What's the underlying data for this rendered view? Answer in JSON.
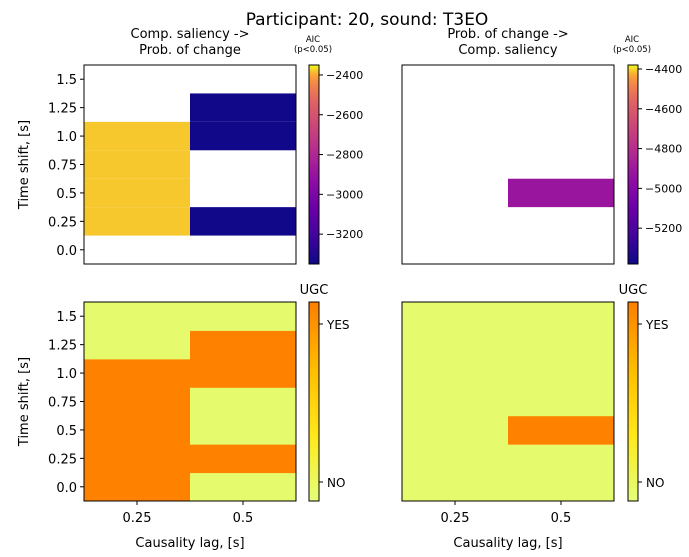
{
  "page": {
    "title": "Participant: 20, sound: T3EO"
  },
  "chart_data": [
    {
      "type": "heatmap",
      "id": "aic-forward",
      "title": "Comp. saliency ->\nProb. of change",
      "xlabel": "",
      "ylabel": "Time shift, [s]",
      "x_categories": [
        0.25,
        0.5
      ],
      "x_tick_labels": [],
      "y_values": [
        0.0,
        0.25,
        0.5,
        0.75,
        1.0,
        1.25,
        1.5
      ],
      "y_tick_labels": [
        "0.0",
        "0.25",
        "0.5",
        "0.75",
        "1.0",
        "1.25",
        "1.5"
      ],
      "colormap": "plasma",
      "cells": [
        {
          "x": 0.25,
          "y": 0.25,
          "value": -2380
        },
        {
          "x": 0.25,
          "y": 0.5,
          "value": -2380
        },
        {
          "x": 0.25,
          "y": 0.75,
          "value": -2380
        },
        {
          "x": 0.25,
          "y": 1.0,
          "value": -2380
        },
        {
          "x": 0.5,
          "y": 0.25,
          "value": -3340
        },
        {
          "x": 0.5,
          "y": 1.0,
          "value": -3340
        },
        {
          "x": 0.5,
          "y": 1.25,
          "value": -3340
        }
      ],
      "missing_color": "#ffffff",
      "colorbar": {
        "label": "AIC\n(p<0.05)",
        "range": [
          -3350,
          -2350
        ],
        "ticks": [
          -2400,
          -2600,
          -2800,
          -3000,
          -3200
        ],
        "tick_labels": [
          "−2400",
          "−2600",
          "−2800",
          "−3000",
          "−3200"
        ]
      }
    },
    {
      "type": "heatmap",
      "id": "aic-reverse",
      "title": "Prob. of change ->\nComp. saliency",
      "xlabel": "",
      "ylabel": "",
      "x_categories": [
        0.25,
        0.5
      ],
      "x_tick_labels": [],
      "y_values": [
        0.0,
        0.25,
        0.5,
        0.75,
        1.0,
        1.25,
        1.5
      ],
      "y_tick_labels": [],
      "colormap": "plasma",
      "cells": [
        {
          "x": 0.5,
          "y": 0.5,
          "value": -4920
        }
      ],
      "missing_color": "#ffffff",
      "colorbar": {
        "label": "AIC\n(p<0.05)",
        "range": [
          -5380,
          -4380
        ],
        "ticks": [
          -4400,
          -4600,
          -4800,
          -5000,
          -5200
        ],
        "tick_labels": [
          "−4400",
          "−4600",
          "−4800",
          "−5000",
          "−5200"
        ]
      }
    },
    {
      "type": "heatmap",
      "id": "ugc-forward",
      "title": "",
      "xlabel": "Causality lag, [s]",
      "ylabel": "Time shift, [s]",
      "x_categories": [
        0.25,
        0.5
      ],
      "x_tick_labels": [
        "0.25",
        "0.5"
      ],
      "y_values": [
        0.0,
        0.25,
        0.5,
        0.75,
        1.0,
        1.25,
        1.5
      ],
      "y_tick_labels": [
        "0.0",
        "0.25",
        "0.5",
        "0.75",
        "1.0",
        "1.25",
        "1.5"
      ],
      "colors": {
        "YES": "#fe8200",
        "NO": "#e6fa6e"
      },
      "grid": [
        {
          "x": 0.25,
          "values": [
            "YES",
            "YES",
            "YES",
            "YES",
            "YES",
            "NO",
            "NO"
          ]
        },
        {
          "x": 0.5,
          "values": [
            "NO",
            "YES",
            "NO",
            "NO",
            "YES",
            "YES",
            "NO"
          ]
        }
      ],
      "colorbar": {
        "label": "UGC",
        "ticks": [
          "YES",
          "NO"
        ]
      }
    },
    {
      "type": "heatmap",
      "id": "ugc-reverse",
      "title": "",
      "xlabel": "Causality lag, [s]",
      "ylabel": "",
      "x_categories": [
        0.25,
        0.5
      ],
      "x_tick_labels": [
        "0.25",
        "0.5"
      ],
      "y_values": [
        0.0,
        0.25,
        0.5,
        0.75,
        1.0,
        1.25,
        1.5
      ],
      "y_tick_labels": [],
      "colors": {
        "YES": "#fe8200",
        "NO": "#e6fa6e"
      },
      "grid": [
        {
          "x": 0.25,
          "values": [
            "NO",
            "NO",
            "NO",
            "NO",
            "NO",
            "NO",
            "NO"
          ]
        },
        {
          "x": 0.5,
          "values": [
            "NO",
            "NO",
            "YES",
            "NO",
            "NO",
            "NO",
            "NO"
          ]
        }
      ],
      "colorbar": {
        "label": "UGC",
        "ticks": [
          "YES",
          "NO"
        ]
      }
    }
  ]
}
